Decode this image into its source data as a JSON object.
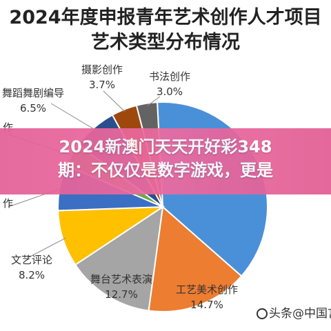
{
  "title": {
    "line1": "2024年度申报青年艺术创作人才项目",
    "line2": "艺术类型分布情况"
  },
  "chart_data": {
    "type": "pie",
    "title": "2024年度申报青年艺术创作人才项目艺术类型分布情况",
    "slices": [
      {
        "label": "",
        "value": 35.0,
        "value_label": "",
        "color": "#4a90d9"
      },
      {
        "label": "工艺美术创作",
        "value": 14.7,
        "value_label": "14.7%",
        "color": "#ed7d31"
      },
      {
        "label": "舞台艺术表演",
        "value": 12.7,
        "value_label": "12.7%",
        "color": "#a5a5a5"
      },
      {
        "label": "文艺评论",
        "value": 8.2,
        "value_label": "8.2%",
        "color": "#ffc000"
      },
      {
        "label": "作",
        "value": 6.6,
        "value_label": "",
        "color": "#3a6fc4"
      },
      {
        "label": "作",
        "value": 3.4,
        "value_label": "",
        "color": "#6aa84f"
      },
      {
        "label": "舞蹈舞剧编导",
        "value": 6.5,
        "value_label": "6.5%",
        "color": "#2b4f8c"
      },
      {
        "label": "摄影创作",
        "value": 3.7,
        "value_label": "3.7%",
        "color": "#9e480e"
      },
      {
        "label": "书法创作",
        "value": 3.0,
        "value_label": "3.0%",
        "color": "#636363"
      }
    ]
  },
  "banner": {
    "line1": "2024新澳门天天开好彩348",
    "line2": "期：不仅仅是数字游戏，更是"
  },
  "watermark": {
    "text": "头条@中国言"
  }
}
